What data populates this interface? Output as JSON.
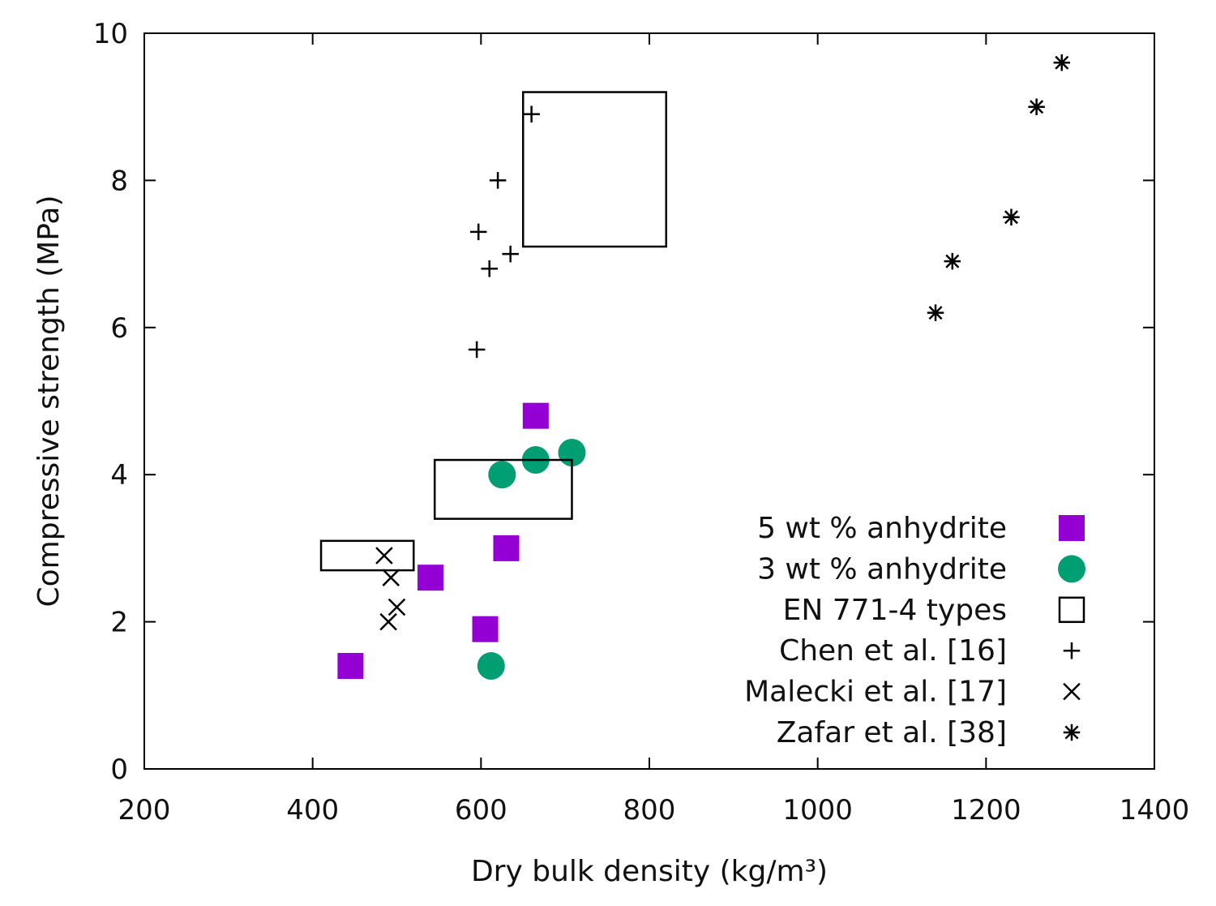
{
  "chart_data": {
    "type": "scatter",
    "xlabel": "Dry bulk density (kg/m³)",
    "ylabel": "Compressive strength (MPa)",
    "xlim": [
      200,
      1400
    ],
    "ylim": [
      0,
      10
    ],
    "xticks": [
      200,
      400,
      600,
      800,
      1000,
      1200,
      1400
    ],
    "yticks": [
      0,
      2,
      4,
      6,
      8,
      10
    ],
    "grid": false,
    "legend_position": "bottom-right",
    "series": [
      {
        "name": "5 wt % anhydrite",
        "marker": "filled-square",
        "color": "#9400d3",
        "points": [
          [
            445,
            1.4
          ],
          [
            540,
            2.6
          ],
          [
            605,
            1.9
          ],
          [
            630,
            3.0
          ],
          [
            665,
            4.8
          ]
        ]
      },
      {
        "name": "3 wt % anhydrite",
        "marker": "filled-circle",
        "color": "#009e73",
        "points": [
          [
            612,
            1.4
          ],
          [
            625,
            4.0
          ],
          [
            665,
            4.2
          ],
          [
            708,
            4.3
          ]
        ]
      },
      {
        "name": "EN 771-4 types",
        "marker": "open-square",
        "color": "#000000",
        "boxes": [
          [
            410,
            520,
            2.7,
            3.1
          ],
          [
            545,
            708,
            3.4,
            4.2
          ],
          [
            650,
            820,
            7.1,
            9.2
          ]
        ]
      },
      {
        "name": "Chen et al. [16]",
        "marker": "plus",
        "color": "#000000",
        "points": [
          [
            595,
            5.7
          ],
          [
            610,
            6.8
          ],
          [
            597,
            7.3
          ],
          [
            635,
            7.0
          ],
          [
            620,
            8.0
          ],
          [
            660,
            8.9
          ]
        ]
      },
      {
        "name": "Malecki et al. [17]",
        "marker": "cross",
        "color": "#000000",
        "points": [
          [
            485,
            2.9
          ],
          [
            493,
            2.6
          ],
          [
            500,
            2.2
          ],
          [
            490,
            2.0
          ]
        ]
      },
      {
        "name": "Zafar et al. [38]",
        "marker": "asterisk",
        "color": "#000000",
        "points": [
          [
            1140,
            6.2
          ],
          [
            1160,
            6.9
          ],
          [
            1230,
            7.5
          ],
          [
            1260,
            9.0
          ],
          [
            1290,
            9.6
          ]
        ]
      }
    ]
  }
}
